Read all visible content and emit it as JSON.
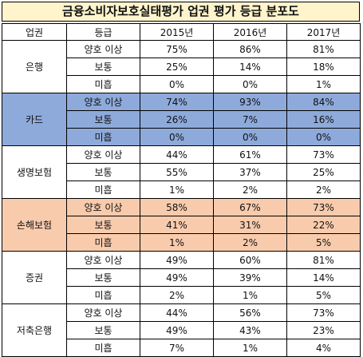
{
  "title": "금융소비자보호실태평가 업권 평가 등급 분포도",
  "headers": [
    "업권",
    "등급",
    "2015년",
    "2016년",
    "2017년"
  ],
  "sections": [
    {
      "name": "은행",
      "highlight": "none",
      "rows": [
        {
          "grade": "양호 이상",
          "v": [
            "75%",
            "86%",
            "81%"
          ]
        },
        {
          "grade": "보통",
          "v": [
            "25%",
            "14%",
            "18%"
          ]
        },
        {
          "grade": "미흡",
          "v": [
            "0%",
            "0%",
            "1%"
          ]
        }
      ]
    },
    {
      "name": "카드",
      "highlight": "blue",
      "rows": [
        {
          "grade": "양호 이상",
          "v": [
            "74%",
            "93%",
            "84%"
          ]
        },
        {
          "grade": "보통",
          "v": [
            "26%",
            "7%",
            "16%"
          ]
        },
        {
          "grade": "미흡",
          "v": [
            "0%",
            "0%",
            "0%"
          ]
        }
      ]
    },
    {
      "name": "생명보험",
      "highlight": "none",
      "rows": [
        {
          "grade": "양호 이상",
          "v": [
            "44%",
            "61%",
            "73%"
          ]
        },
        {
          "grade": "보통",
          "v": [
            "55%",
            "37%",
            "25%"
          ]
        },
        {
          "grade": "미흡",
          "v": [
            "1%",
            "2%",
            "2%"
          ]
        }
      ]
    },
    {
      "name": "손해보험",
      "highlight": "orange",
      "rows": [
        {
          "grade": "양호 이상",
          "v": [
            "58%",
            "67%",
            "73%"
          ]
        },
        {
          "grade": "보통",
          "v": [
            "41%",
            "31%",
            "22%"
          ]
        },
        {
          "grade": "미흡",
          "v": [
            "1%",
            "2%",
            "5%"
          ]
        }
      ]
    },
    {
      "name": "증권",
      "highlight": "none",
      "rows": [
        {
          "grade": "양호 이상",
          "v": [
            "49%",
            "60%",
            "81%"
          ]
        },
        {
          "grade": "보통",
          "v": [
            "49%",
            "39%",
            "14%"
          ]
        },
        {
          "grade": "미흡",
          "v": [
            "2%",
            "1%",
            "5%"
          ]
        }
      ]
    },
    {
      "name": "저축은행",
      "highlight": "none",
      "rows": [
        {
          "grade": "양호 이상",
          "v": [
            "44%",
            "56%",
            "73%"
          ]
        },
        {
          "grade": "보통",
          "v": [
            "49%",
            "43%",
            "23%"
          ]
        },
        {
          "grade": "미흡",
          "v": [
            "7%",
            "1%",
            "4%"
          ]
        }
      ]
    }
  ],
  "colors": {
    "title_bg": "#fff4cc",
    "blue": "#8eaadb",
    "orange": "#f8cbad"
  }
}
